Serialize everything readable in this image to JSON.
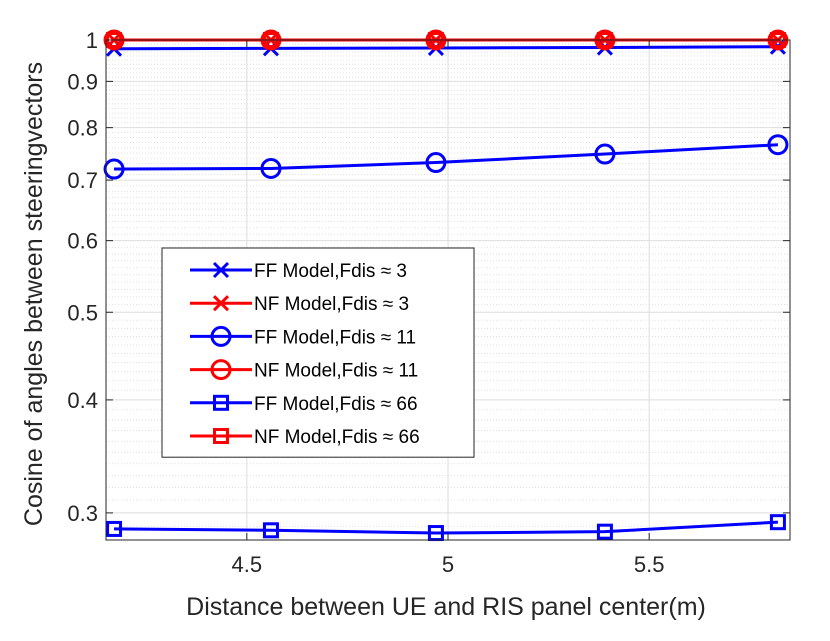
{
  "chart_data": {
    "type": "line",
    "title": "",
    "xlabel": "Distance between UE and RIS panel center(m)",
    "ylabel": "Cosine of angles between steeringvectors",
    "xlim": [
      4.15,
      5.85
    ],
    "ylim": [
      0.28,
      1.0
    ],
    "yscale": "log",
    "xticks": [
      "4.5",
      "5",
      "5.5"
    ],
    "yticks": [
      "0.3",
      "0.4",
      "0.5",
      "0.6",
      "0.7",
      "0.8",
      "0.9",
      "1"
    ],
    "grid": true,
    "legend_position": "center-left",
    "x": [
      4.17,
      4.56,
      4.97,
      5.39,
      5.82
    ],
    "series": [
      {
        "name": "FF Model,Fdis ≈ 3",
        "marker": "x",
        "color": "#0000ff",
        "values": [
          0.978,
          0.979,
          0.98,
          0.981,
          0.983
        ]
      },
      {
        "name": "NF Model,Fdis ≈ 3",
        "marker": "x",
        "color": "#ff0000",
        "values": [
          1.0,
          1.0,
          1.0,
          1.0,
          1.0
        ]
      },
      {
        "name": "FF Model,Fdis ≈ 11",
        "marker": "o",
        "color": "#0000ff",
        "values": [
          0.72,
          0.721,
          0.732,
          0.748,
          0.766
        ]
      },
      {
        "name": "NF Model,Fdis ≈ 11",
        "marker": "o",
        "color": "#ff0000",
        "values": [
          1.0,
          1.0,
          1.0,
          1.0,
          1.0
        ]
      },
      {
        "name": "FF Model,Fdis ≈ 66",
        "marker": "s",
        "color": "#0000ff",
        "values": [
          0.288,
          0.287,
          0.285,
          0.286,
          0.293
        ]
      },
      {
        "name": "NF Model,Fdis ≈ 66",
        "marker": "s",
        "color": "#ff0000",
        "values": [
          1.0,
          1.0,
          1.0,
          1.0,
          1.0
        ]
      }
    ]
  }
}
